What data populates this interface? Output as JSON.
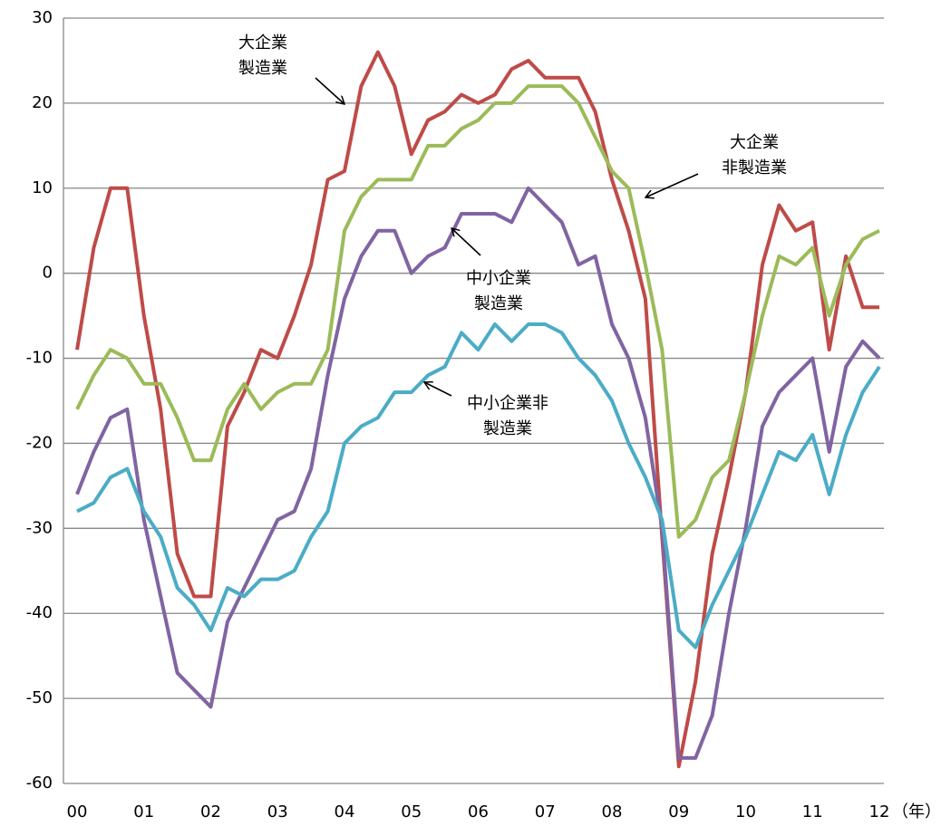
{
  "chart_data": {
    "type": "line",
    "x": [
      0,
      0.25,
      0.5,
      0.75,
      1,
      1.25,
      1.5,
      1.75,
      2,
      2.25,
      2.5,
      2.75,
      3,
      3.25,
      3.5,
      3.75,
      4,
      4.25,
      4.5,
      4.75,
      5,
      5.25,
      5.5,
      5.75,
      6,
      6.25,
      6.5,
      6.75,
      7,
      7.25,
      7.5,
      7.75,
      8,
      8.25,
      8.5,
      8.75,
      9,
      9.25,
      9.5,
      9.75,
      10,
      10.25,
      10.5,
      10.75,
      11,
      11.25,
      11.5,
      11.75,
      12
    ],
    "series": [
      {
        "name": "大企業製造業",
        "color": "#be4b48",
        "values": [
          -9,
          3,
          10,
          10,
          -5,
          -16,
          -33,
          -38,
          -38,
          -18,
          -14,
          -9,
          -10,
          -5,
          1,
          11,
          12,
          22,
          26,
          22,
          14,
          18,
          19,
          21,
          20,
          21,
          24,
          25,
          23,
          23,
          23,
          19,
          11,
          5,
          -3,
          -31,
          -58,
          -48,
          -33,
          -24,
          -14,
          1,
          8,
          5,
          6,
          -9,
          2,
          -4,
          -4
        ]
      },
      {
        "name": "大企業非製造業",
        "color": "#9bbb59",
        "values": [
          -16,
          -12,
          -9,
          -10,
          -13,
          -13,
          -17,
          -22,
          -22,
          -16,
          -13,
          -16,
          -14,
          -13,
          -13,
          -9,
          5,
          9,
          11,
          11,
          11,
          15,
          15,
          17,
          18,
          20,
          20,
          22,
          22,
          22,
          20,
          16,
          12,
          10,
          1,
          -9,
          -31,
          -29,
          -24,
          -22,
          -14,
          -5,
          2,
          1,
          3,
          -5,
          1,
          4,
          5
        ]
      },
      {
        "name": "中小企業製造業",
        "color": "#8064a2",
        "values": [
          -26,
          -21,
          -17,
          -16,
          -29,
          -38,
          -47,
          -49,
          -51,
          -41,
          -37,
          -33,
          -29,
          -28,
          -23,
          -12,
          -3,
          2,
          5,
          5,
          0,
          2,
          3,
          7,
          7,
          7,
          6,
          10,
          8,
          6,
          1,
          2,
          -6,
          -10,
          -17,
          -30,
          -57,
          -57,
          -52,
          -40,
          -30,
          -18,
          -14,
          -12,
          -10,
          -21,
          -11,
          -8,
          -10
        ]
      },
      {
        "name": "中小企業非製造業",
        "color": "#4bacc6",
        "values": [
          -28,
          -27,
          -24,
          -23,
          -28,
          -31,
          -37,
          -39,
          -42,
          -37,
          -38,
          -36,
          -36,
          -35,
          -31,
          -28,
          -20,
          -18,
          -17,
          -14,
          -14,
          -12,
          -11,
          -7,
          -9,
          -6,
          -8,
          -6,
          -6,
          -7,
          -10,
          -12,
          -15,
          -20,
          -24,
          -29,
          -42,
          -44,
          -39,
          -35,
          -31,
          -26,
          -21,
          -22,
          -19,
          -26,
          -19,
          -14,
          -11
        ]
      }
    ],
    "xlim": [
      0,
      12
    ],
    "xticks": [
      {
        "value": 0,
        "label": "00"
      },
      {
        "value": 1,
        "label": "01"
      },
      {
        "value": 2,
        "label": "02"
      },
      {
        "value": 3,
        "label": "03"
      },
      {
        "value": 4,
        "label": "04"
      },
      {
        "value": 5,
        "label": "05"
      },
      {
        "value": 6,
        "label": "06"
      },
      {
        "value": 7,
        "label": "07"
      },
      {
        "value": 8,
        "label": "08"
      },
      {
        "value": 9,
        "label": "09"
      },
      {
        "value": 10,
        "label": "10"
      },
      {
        "value": 11,
        "label": "11"
      },
      {
        "value": 12,
        "label": "12"
      }
    ],
    "xlabel": "（年）",
    "ylim": [
      -60,
      30
    ],
    "yticks": [
      -60,
      -50,
      -40,
      -30,
      -20,
      -10,
      0,
      10,
      20,
      30
    ],
    "grid": true,
    "annotations": [
      {
        "text": [
          "大企業",
          "製造業"
        ]
      },
      {
        "text": [
          "大企業",
          "非製造業"
        ]
      },
      {
        "text": [
          "中小企業",
          "製造業"
        ]
      },
      {
        "text": [
          "中小企業非",
          "製造業"
        ]
      }
    ]
  }
}
